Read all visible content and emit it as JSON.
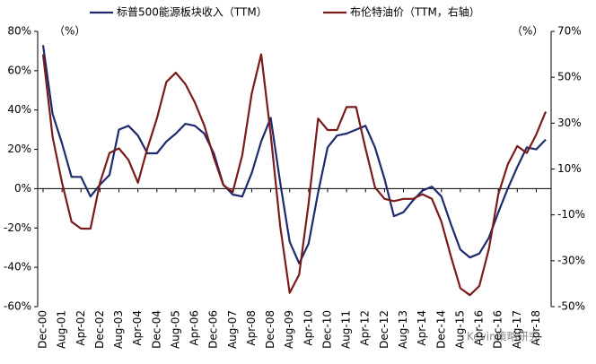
{
  "chart_data": {
    "type": "line",
    "y_unit_label": "（%）",
    "y2_unit_label": "（%）",
    "watermark": "Kevin策略研究",
    "categories": [
      "Dec-00",
      null,
      "Aug-01",
      null,
      "Apr-02",
      null,
      "Dec-02",
      null,
      "Aug-03",
      null,
      "Apr-04",
      null,
      "Dec-04",
      null,
      "Aug-05",
      null,
      "Apr-06",
      null,
      "Dec-06",
      null,
      "Aug-07",
      null,
      "Apr-08",
      null,
      "Dec-08",
      null,
      "Aug-09",
      null,
      "Apr-10",
      null,
      "Dec-10",
      null,
      "Aug-11",
      null,
      "Apr-12",
      null,
      "Dec-12",
      null,
      "Aug-13",
      null,
      "Apr-14",
      null,
      "Dec-14",
      null,
      "Aug-15",
      null,
      "Apr-16",
      null,
      "Dec-16",
      null,
      "Aug-17",
      null,
      "Apr-18",
      null
    ],
    "series": [
      {
        "name": "标普500能源板块收入（TTM）",
        "color": "#1f2a6e",
        "axis": "y",
        "values": [
          73,
          38,
          23,
          6,
          6,
          -4,
          2,
          7,
          30,
          32,
          27,
          18,
          18,
          24,
          28,
          33,
          32,
          28,
          18,
          2,
          -3,
          -4,
          8,
          24,
          36,
          3,
          -27,
          -38,
          -28,
          -2,
          21,
          27,
          28,
          30,
          32,
          21,
          5,
          -14,
          -12,
          -6,
          -1,
          1,
          -4,
          -18,
          -31,
          -35,
          -33,
          -25,
          -12,
          0,
          11,
          21,
          20,
          25
        ]
      },
      {
        "name": "布伦特油价（TTM，右轴）",
        "color": "#7b1a1a",
        "axis": "y2",
        "values": [
          60,
          24,
          4,
          -13,
          -16,
          -16,
          4,
          17,
          19,
          14,
          4,
          19,
          32,
          48,
          52,
          47,
          39,
          29,
          15,
          3,
          0,
          16,
          43,
          60,
          25,
          -15,
          -44,
          -36,
          -5,
          32,
          27,
          27,
          37,
          37,
          19,
          2,
          -3,
          -4,
          -3,
          -3,
          -1,
          -3,
          -13,
          -28,
          -42,
          -45,
          -41,
          -25,
          -1,
          12,
          20,
          17,
          25,
          35
        ]
      }
    ],
    "ylim": [
      -60,
      80
    ],
    "yticks": [
      {
        "value": -60,
        "label": "-60%"
      },
      {
        "value": -40,
        "label": "-40%"
      },
      {
        "value": -20,
        "label": "-20%"
      },
      {
        "value": 0,
        "label": "0%"
      },
      {
        "value": 20,
        "label": "20%"
      },
      {
        "value": 40,
        "label": "40%"
      },
      {
        "value": 60,
        "label": "60%"
      },
      {
        "value": 80,
        "label": "80%"
      }
    ],
    "y2lim": [
      -50,
      70
    ],
    "y2ticks": [
      {
        "value": -50,
        "label": "-50%"
      },
      {
        "value": -30,
        "label": "-30%"
      },
      {
        "value": -10,
        "label": "-10%"
      },
      {
        "value": 10,
        "label": "10%"
      },
      {
        "value": 30,
        "label": "30%"
      },
      {
        "value": 50,
        "label": "50%"
      },
      {
        "value": 70,
        "label": "70%"
      }
    ],
    "legend": "top"
  }
}
